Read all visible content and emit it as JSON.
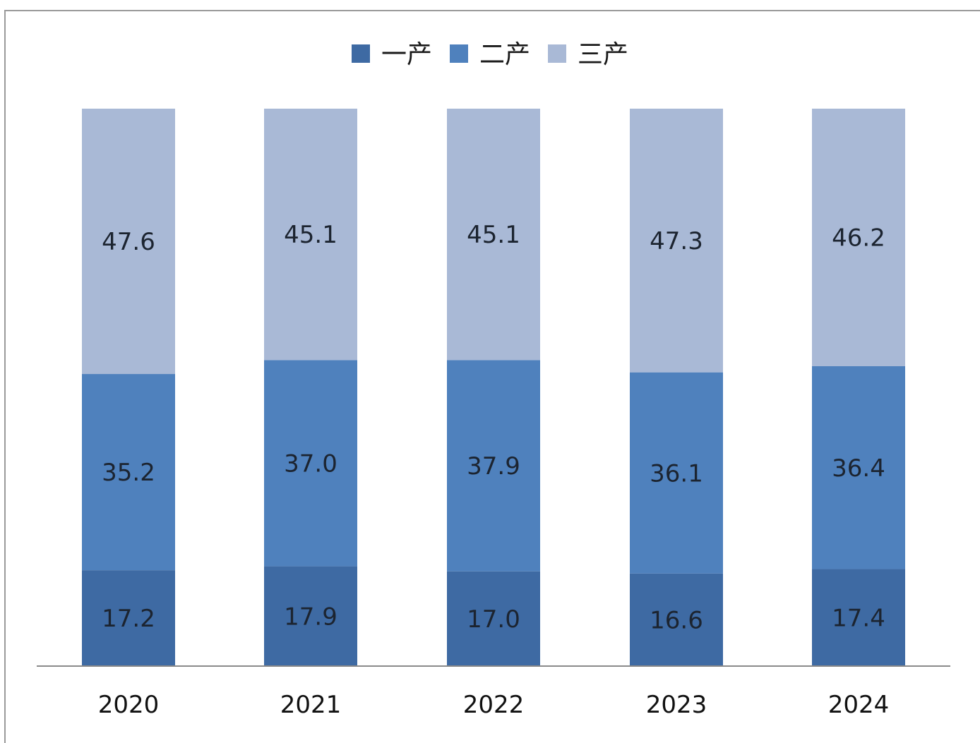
{
  "chart_data": {
    "type": "bar",
    "stacked": true,
    "categories": [
      "2020",
      "2021",
      "2022",
      "2023",
      "2024"
    ],
    "series": [
      {
        "name": "一产",
        "values": [
          17.2,
          17.9,
          17.0,
          16.6,
          17.4
        ],
        "color": "#3e6aa3"
      },
      {
        "name": "二产",
        "values": [
          35.2,
          37.0,
          37.9,
          36.1,
          36.4
        ],
        "color": "#4f81bd"
      },
      {
        "name": "三产",
        "values": [
          47.6,
          45.1,
          45.1,
          47.3,
          46.2
        ],
        "color": "#a9b9d6"
      }
    ],
    "ylim": [
      0,
      100
    ],
    "grid": false,
    "legend_position": "top-center",
    "title": "",
    "xlabel": "",
    "ylabel": ""
  }
}
